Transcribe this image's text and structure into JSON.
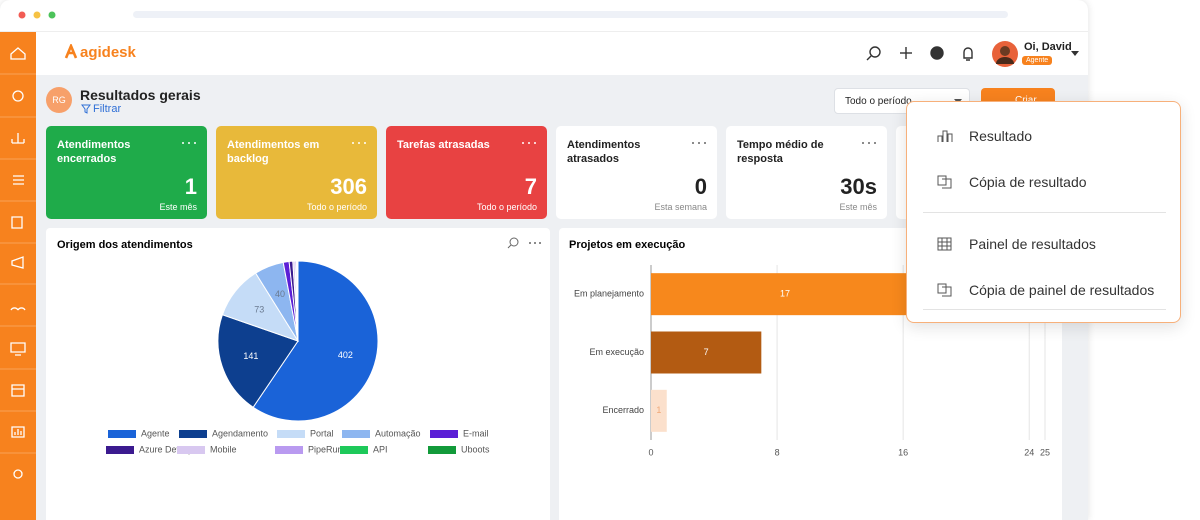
{
  "app": {
    "logo": "agidesk"
  },
  "header": {
    "greeting": "Oi, David",
    "role": "Agente"
  },
  "page": {
    "initials": "RG",
    "title": "Resultados gerais",
    "filter": "Filtrar",
    "period": "Todo o período",
    "create": "Criar"
  },
  "cards": [
    {
      "title": "Atendimentos encerrados",
      "value": 1,
      "sub": "Este mês",
      "color": "#1fab4a"
    },
    {
      "title": "Atendimentos em backlog",
      "value": 306,
      "sub": "Todo o período",
      "color": "#e8b93a"
    },
    {
      "title": "Tarefas atrasadas",
      "value": 7,
      "sub": "Todo o período",
      "color": "#e84242"
    },
    {
      "title": "Atendimentos atrasados",
      "value": 0,
      "sub": "Esta semana",
      "color": "#ffffff"
    },
    {
      "title": "Tempo médio de resposta",
      "value": "30s",
      "sub": "Este mês",
      "color": "#ffffff"
    }
  ],
  "menu": {
    "items": [
      "Resultado",
      "Cópia de resultado",
      "Painel de resultados",
      "Cópia de painel de resultados"
    ]
  },
  "chart_data": [
    {
      "type": "pie",
      "title": "Origem dos atendimentos",
      "categories": [
        "Agente",
        "Agendamento",
        "Portal",
        "Automação",
        "E-mail",
        "Azure DevOps",
        "Mobile",
        "PipeRun CRM",
        "API",
        "Uboots"
      ],
      "values": [
        402,
        141,
        73,
        40,
        8,
        5,
        3,
        2,
        1,
        1
      ],
      "colors": [
        "#1a63d8",
        "#0d3f8f",
        "#c5dcf7",
        "#8db6f0",
        "#5b1fd6",
        "#3b1a8f",
        "#d8c8f0",
        "#b99af0",
        "#1ec95a",
        "#129a3a"
      ]
    },
    {
      "type": "hbar",
      "title": "Projetos em execução",
      "categories": [
        "Em planejamento",
        "Em execução",
        "Encerrado"
      ],
      "values": [
        17,
        7,
        1
      ],
      "colors": [
        "#f7881c",
        "#b35b12",
        "#fbe0cc"
      ],
      "xlim": [
        0,
        25
      ],
      "xticks": [
        0,
        8,
        16,
        24,
        25
      ],
      "grid": true
    }
  ]
}
